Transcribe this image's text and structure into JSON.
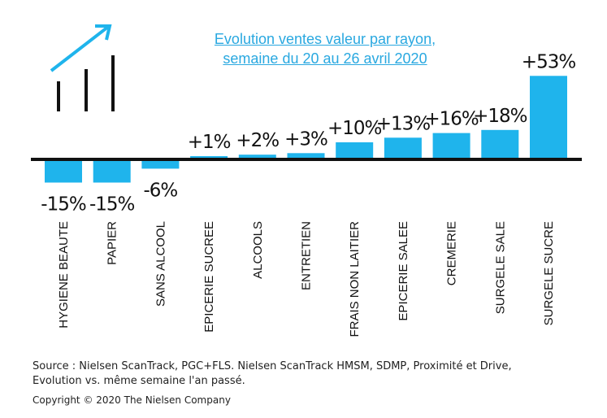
{
  "colors": {
    "bar": "#1fb4ec",
    "axis": "#111111",
    "title": "#29a8e0",
    "text": "#111111"
  },
  "icons": {
    "top_left": "growth-chart-icon"
  },
  "chart_data": {
    "type": "bar",
    "title": [
      "Evolution ventes valeur par rayon,",
      "semaine du 20 au 26 avril 2020"
    ],
    "categories": [
      "HYGIENE BEAUTE",
      "PAPIER",
      "SANS ALCOOL",
      "EPICERIE SUCREE",
      "ALCOOLS",
      "ENTRETIEN",
      "FRAIS NON LAITIER",
      "EPICERIE SALEE",
      "CREMERIE",
      "SURGELE SALE",
      "SURGELE SUCRE"
    ],
    "values": [
      -15,
      -15,
      -6,
      1,
      2,
      3,
      10,
      13,
      16,
      18,
      53
    ],
    "data_labels": [
      "-15%",
      "-15%",
      "-6%",
      "+1%",
      "+2%",
      "+3%",
      "+10%",
      "+13%",
      "+16%",
      "+18%",
      "+53%"
    ],
    "unit": "%",
    "xlabel": "",
    "ylabel": "",
    "grid": false,
    "legend": "none"
  },
  "footer": {
    "source": [
      "Source : Nielsen ScanTrack, PGC+FLS. Nielsen ScanTrack HMSM, SDMP, Proximité et Drive,",
      "Evolution vs. même semaine l'an passé."
    ],
    "copyright": "Copyright © 2020 The Nielsen Company"
  }
}
